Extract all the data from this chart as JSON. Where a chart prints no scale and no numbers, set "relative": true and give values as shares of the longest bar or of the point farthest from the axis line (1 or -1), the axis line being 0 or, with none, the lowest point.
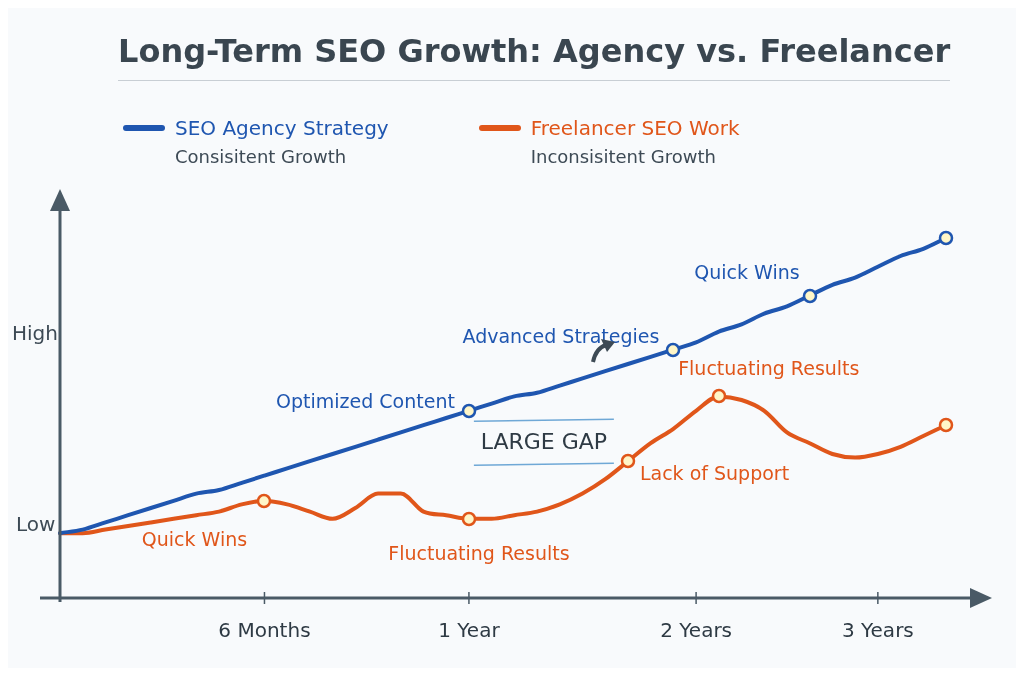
{
  "chart_data": {
    "type": "line",
    "title": "Long-Term SEO Growth: Agency vs. Freelancer",
    "relative": true,
    "legend": "top left",
    "line_style": "solid",
    "categories": [
      null,
      null,
      null,
      null,
      null,
      null,
      null,
      null,
      null,
      "6 Months",
      null,
      null,
      null,
      null,
      null,
      null,
      null,
      null,
      "1 Year",
      null,
      null,
      null,
      null,
      null,
      null,
      null,
      null,
      null,
      "2 Years",
      null,
      null,
      null,
      null,
      null,
      null,
      null,
      "3 Years",
      null,
      null,
      null
    ],
    "series": [
      {
        "name": "SEO Agency Strategy",
        "color": "#1f56b0",
        "values": [
          0.18,
          0.19,
          0.21,
          0.23,
          0.25,
          0.27,
          0.29,
          0.3,
          0.32,
          0.34,
          0.36,
          0.38,
          0.4,
          0.42,
          0.44,
          0.46,
          0.48,
          0.5,
          0.52,
          0.54,
          0.56,
          0.57,
          0.59,
          0.61,
          0.63,
          0.65,
          0.67,
          0.69,
          0.71,
          0.74,
          0.76,
          0.79,
          0.81,
          0.84,
          0.87,
          0.89,
          0.92,
          0.95,
          0.97,
          1
        ]
      },
      {
        "name": "Freelancer SEO Work",
        "color": "#e0561a",
        "values": [
          0.18,
          0.18,
          0.19,
          0.2,
          0.21,
          0.22,
          0.23,
          0.24,
          0.26,
          0.27,
          0.26,
          0.24,
          0.22,
          0.25,
          0.29,
          0.29,
          0.24,
          0.23,
          0.22,
          0.22,
          0.23,
          0.24,
          0.26,
          0.29,
          0.33,
          0.38,
          0.43,
          0.47,
          0.52,
          0.56,
          0.55,
          0.52,
          0.46,
          0.43,
          0.4,
          0.39,
          0.4,
          0.42,
          0.45,
          0.48
        ]
      }
    ],
    "annotations": [
      "High",
      "Low",
      "Consisitent Growth",
      "Inconsisitent Growth",
      "LARGE GAP",
      "Optimized Content",
      "Advanced Strategies",
      "Quick Wins",
      "Quick Wins",
      "Fluctuating Results",
      "Lack of Support",
      "Fluctuating Results"
    ]
  }
}
